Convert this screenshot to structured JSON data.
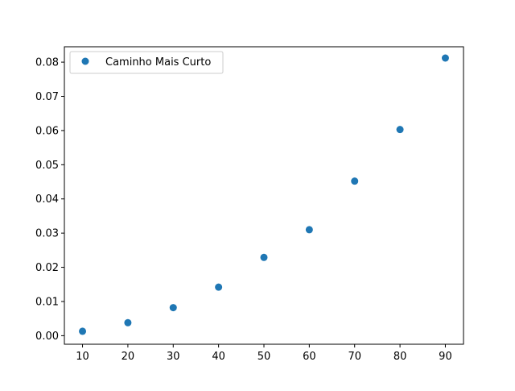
{
  "chart_data": {
    "type": "scatter",
    "title": "",
    "xlabel": "",
    "ylabel": "",
    "xlim": [
      6,
      94
    ],
    "ylim": [
      -0.0025,
      0.0845
    ],
    "x_ticks": [
      10,
      20,
      30,
      40,
      50,
      60,
      70,
      80,
      90
    ],
    "y_ticks": [
      0.0,
      0.01,
      0.02,
      0.03,
      0.04,
      0.05,
      0.06,
      0.07,
      0.08
    ],
    "x_tick_labels": [
      "10",
      "20",
      "30",
      "40",
      "50",
      "60",
      "70",
      "80",
      "90"
    ],
    "y_tick_labels": [
      "0.00",
      "0.01",
      "0.02",
      "0.03",
      "0.04",
      "0.05",
      "0.06",
      "0.07",
      "0.08"
    ],
    "grid": false,
    "legend_position": "upper-left",
    "series": [
      {
        "name": "Caminho Mais Curto",
        "color": "#1f77b4",
        "marker": "circle",
        "x": [
          10,
          20,
          30,
          40,
          50,
          60,
          70,
          80,
          90
        ],
        "y": [
          0.0013,
          0.0038,
          0.0082,
          0.0142,
          0.0229,
          0.031,
          0.0452,
          0.0603,
          0.0812
        ]
      }
    ]
  }
}
